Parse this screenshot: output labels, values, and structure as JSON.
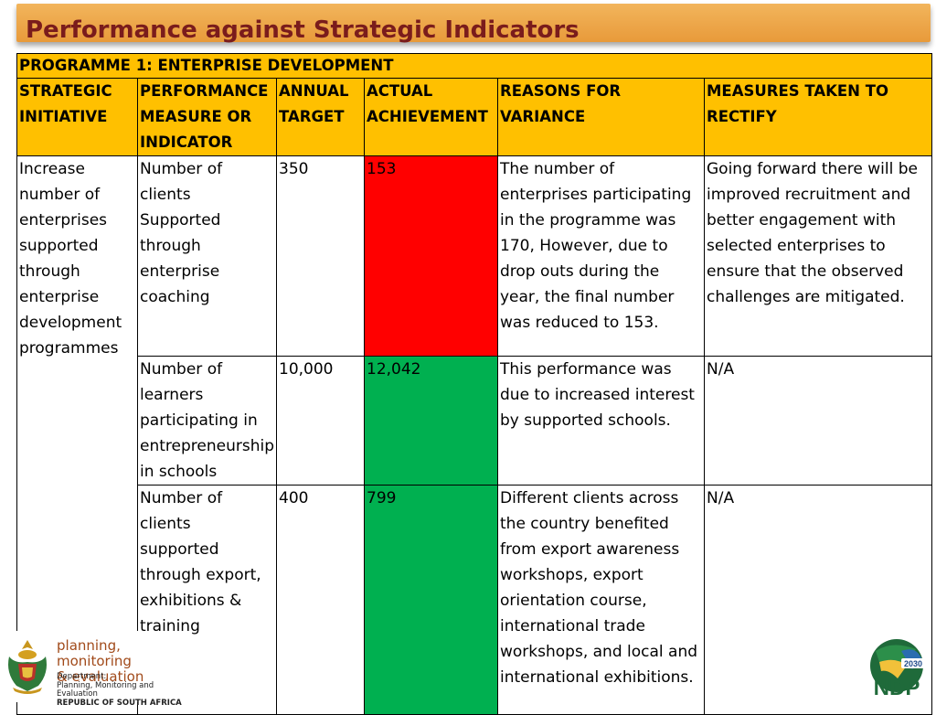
{
  "title": "Performance against Strategic Indicators",
  "programme": "PROGRAMME 1: ENTERPRISE DEVELOPMENT",
  "headers": [
    "STRATEGIC INITIATIVE",
    "PERFORMANCE MEASURE OR INDICATOR",
    "ANNUAL TARGET",
    "ACTUAL ACHIEVEMENT",
    "REASONS FOR VARIANCE",
    "MEASURES TAKEN TO RECTIFY"
  ],
  "initiative": "Increase number of enterprises supported through enterprise development programmes",
  "rows": [
    {
      "indicator": "Number of clients Supported through enterprise coaching",
      "target": "350",
      "actual": "153",
      "status": "red",
      "reason": "The number of enterprises participating in the programme was 170, However, due to drop outs during the year, the final number was reduced to 153.",
      "measures": "Going forward there will be improved recruitment and better engagement with selected enterprises to ensure that the observed challenges are mitigated."
    },
    {
      "indicator": "Number of learners participating in entrepreneurship in schools",
      "target": "10,000",
      "actual": "12,042",
      "status": "green",
      "reason": "This performance was due to increased interest by supported schools.",
      "measures": "N/A"
    },
    {
      "indicator": "Number of clients supported through export, exhibitions & training",
      "target": "400",
      "actual": "799",
      "status": "green",
      "reason": "Different clients across the country benefited from export awareness workshops, export orientation course, international trade workshops, and local and international exhibitions.",
      "measures": "N/A"
    }
  ],
  "colors": {
    "header": "#ffc000",
    "red": "#ff0000",
    "green": "#00b050",
    "title": "#7a1c1c"
  },
  "footer": {
    "brand_line1": "planning, monitoring",
    "brand_line2": "& evaluation",
    "dept_line1": "Department:",
    "dept_line2": "Planning, Monitoring and Evaluation",
    "dept_line3": "REPUBLIC OF SOUTH AFRICA",
    "ndp_year": "2030",
    "ndp_text": "NDP"
  }
}
